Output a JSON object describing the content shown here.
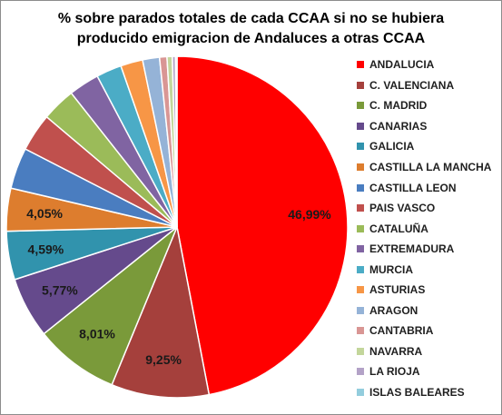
{
  "chart_data": {
    "type": "pie",
    "title_lines": [
      "% sobre parados totales de cada CCAA si no se hubiera",
      "producido emigracion de Andaluces a otras CCAA"
    ],
    "legend_position": "right",
    "start_angle_deg": 0,
    "direction": "clockwise",
    "slices": [
      {
        "name": "ANDALUCIA",
        "value": 46.99,
        "label": "46,99%",
        "color": "#FF0000"
      },
      {
        "name": "C. VALENCIANA",
        "value": 9.25,
        "label": "9,25%",
        "color": "#A5403C"
      },
      {
        "name": "C. MADRID",
        "value": 8.01,
        "label": "8,01%",
        "color": "#7A9A3A"
      },
      {
        "name": "CANARIAS",
        "value": 5.77,
        "label": "5,77%",
        "color": "#654A8C"
      },
      {
        "name": "GALICIA",
        "value": 4.59,
        "label": "4,59%",
        "color": "#3193AD"
      },
      {
        "name": "CASTILLA LA MANCHA",
        "value": 4.05,
        "label": "4,05%",
        "color": "#DD7D2E"
      },
      {
        "name": "CASTILLA LEON",
        "value": 3.9,
        "label": "",
        "color": "#4A7DC0"
      },
      {
        "name": "PAIS VASCO",
        "value": 3.6,
        "label": "",
        "color": "#C0504D"
      },
      {
        "name": "CATALUÑA",
        "value": 3.2,
        "label": "",
        "color": "#9BBB59"
      },
      {
        "name": "EXTREMADURA",
        "value": 2.9,
        "label": "",
        "color": "#8064A2"
      },
      {
        "name": "MURCIA",
        "value": 2.4,
        "label": "",
        "color": "#4BACC6"
      },
      {
        "name": "ASTURIAS",
        "value": 2.1,
        "label": "",
        "color": "#F79646"
      },
      {
        "name": "ARAGON",
        "value": 1.6,
        "label": "",
        "color": "#95B3D7"
      },
      {
        "name": "CANTABRIA",
        "value": 0.7,
        "label": "",
        "color": "#D99694"
      },
      {
        "name": "NAVARRA",
        "value": 0.5,
        "label": "",
        "color": "#C3D69B"
      },
      {
        "name": "LA RIOJA",
        "value": 0.3,
        "label": "",
        "color": "#B3A2C7"
      },
      {
        "name": "ISLAS BALEARES",
        "value": 0.14,
        "label": "",
        "color": "#93CDDD"
      }
    ]
  }
}
